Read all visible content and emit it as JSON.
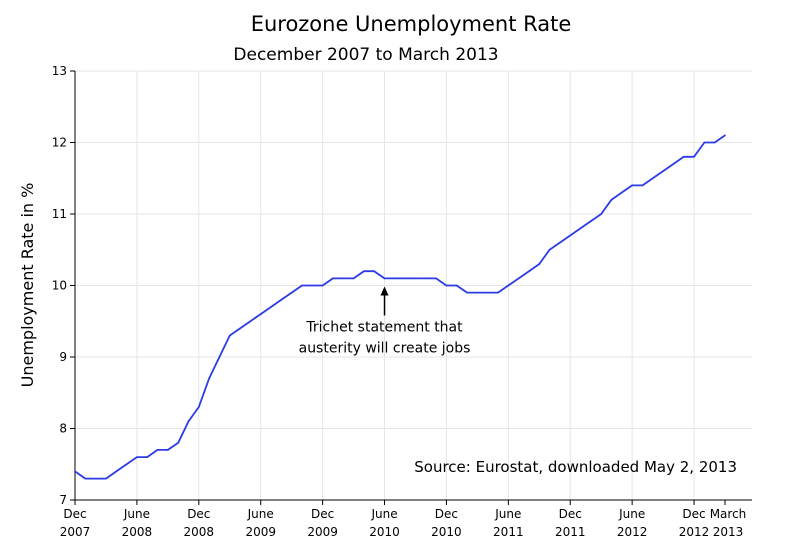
{
  "chart_data": {
    "type": "line",
    "title": "Eurozone Unemployment Rate",
    "subtitle": "December 2007 to March 2013",
    "xlabel": "",
    "ylabel": "Unemployment Rate in %",
    "ylim": [
      7,
      13
    ],
    "yticks": [
      7,
      8,
      9,
      10,
      11,
      12,
      13
    ],
    "xlim": [
      0,
      63
    ],
    "grid": true,
    "x_ticks": [
      {
        "x": 0,
        "line1": "Dec",
        "line2": "2007"
      },
      {
        "x": 6,
        "line1": "June",
        "line2": "2008"
      },
      {
        "x": 12,
        "line1": "Dec",
        "line2": "2008"
      },
      {
        "x": 18,
        "line1": "June",
        "line2": "2009"
      },
      {
        "x": 24,
        "line1": "Dec",
        "line2": "2009"
      },
      {
        "x": 30,
        "line1": "June",
        "line2": "2010"
      },
      {
        "x": 36,
        "line1": "Dec",
        "line2": "2010"
      },
      {
        "x": 42,
        "line1": "June",
        "line2": "2011"
      },
      {
        "x": 48,
        "line1": "Dec",
        "line2": "2011"
      },
      {
        "x": 54,
        "line1": "June",
        "line2": "2012"
      },
      {
        "x": 60,
        "line1": "Dec",
        "line2": "2012"
      },
      {
        "x": 63,
        "line1": "March",
        "line2": "2013"
      }
    ],
    "series": [
      {
        "name": "Eurozone unemployment rate",
        "color": "#2b3be6",
        "x": [
          0,
          1,
          2,
          3,
          4,
          5,
          6,
          7,
          8,
          9,
          10,
          11,
          12,
          13,
          14,
          15,
          16,
          17,
          18,
          19,
          20,
          21,
          22,
          23,
          24,
          25,
          26,
          27,
          28,
          29,
          30,
          31,
          32,
          33,
          34,
          35,
          36,
          37,
          38,
          39,
          40,
          41,
          42,
          43,
          44,
          45,
          46,
          47,
          48,
          49,
          50,
          51,
          52,
          53,
          54,
          55,
          56,
          57,
          58,
          59,
          60,
          61,
          62,
          63
        ],
        "values": [
          7.4,
          7.3,
          7.3,
          7.3,
          7.4,
          7.5,
          7.6,
          7.6,
          7.7,
          7.7,
          7.8,
          8.1,
          8.3,
          8.7,
          9.0,
          9.3,
          9.4,
          9.5,
          9.6,
          9.7,
          9.8,
          9.9,
          10.0,
          10.0,
          10.0,
          10.1,
          10.1,
          10.1,
          10.2,
          10.2,
          10.1,
          10.1,
          10.1,
          10.1,
          10.1,
          10.1,
          10.0,
          10.0,
          9.9,
          9.9,
          9.9,
          9.9,
          10.0,
          10.1,
          10.2,
          10.3,
          10.5,
          10.6,
          10.7,
          10.8,
          10.9,
          11.0,
          11.2,
          11.3,
          11.4,
          11.4,
          11.5,
          11.6,
          11.7,
          11.8,
          11.8,
          12.0,
          12.0,
          12.1
        ]
      }
    ],
    "annotation": {
      "x": 30,
      "y": 10.0,
      "line1": "Trichet statement that",
      "line2": "austerity will create jobs"
    },
    "source": "Source:  Eurostat, downloaded May 2, 2013"
  }
}
